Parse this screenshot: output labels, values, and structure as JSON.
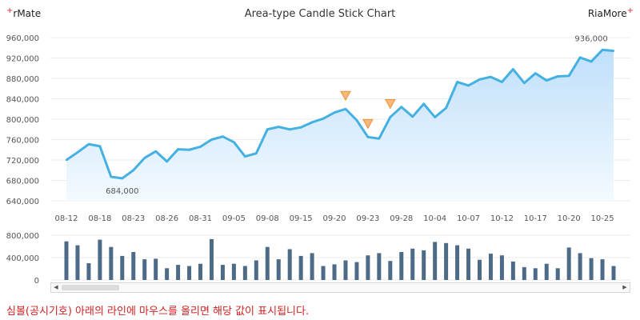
{
  "header": {
    "left_brand": "rMate",
    "right_brand": "RiaMore",
    "brand_mark": "+"
  },
  "footnote": "심볼(공시기호) 아래의 라인에 마우스를 올리면 해당 값이 표시됩니다.",
  "colors": {
    "line": "#45b0e2",
    "area_top": "#bfe0fb",
    "area_bottom": "#f4faff",
    "bar": "#4d6a87",
    "marker_fill": "#f7b87a",
    "marker_stroke": "#e8943c",
    "footnote": "#d62020"
  },
  "chart_data": [
    {
      "type": "area",
      "title": "Area-type Candle Stick Chart",
      "ylim": [
        640000,
        960000
      ],
      "yticks": [
        "640,000",
        "680,000",
        "720,000",
        "760,000",
        "800,000",
        "840,000",
        "880,000",
        "920,000",
        "960,000"
      ],
      "x_tick_labels": [
        "08-12",
        "08-18",
        "08-23",
        "08-26",
        "08-31",
        "09-05",
        "09-08",
        "09-15",
        "09-20",
        "09-23",
        "09-28",
        "10-04",
        "10-07",
        "10-12",
        "10-17",
        "10-20",
        "10-25"
      ],
      "x_tick_positions": [
        0,
        3,
        6,
        9,
        12,
        15,
        18,
        21,
        24,
        27,
        30,
        33,
        36,
        39,
        42,
        45,
        48
      ],
      "values": [
        720000,
        735000,
        751000,
        747000,
        687000,
        684000,
        700000,
        724000,
        737000,
        717000,
        741000,
        740000,
        746000,
        760000,
        766000,
        755000,
        727000,
        733000,
        780000,
        785000,
        780000,
        784000,
        794000,
        801000,
        813000,
        820000,
        798000,
        765000,
        762000,
        804000,
        824000,
        805000,
        830000,
        804000,
        822000,
        873000,
        866000,
        878000,
        883000,
        873000,
        898000,
        871000,
        890000,
        876000,
        884000,
        885000,
        921000,
        913000,
        936000,
        934000
      ],
      "annotations": [
        {
          "label": "684,000",
          "index": 5
        },
        {
          "label": "936,000",
          "index": 48
        }
      ],
      "markers": [
        25,
        27,
        29
      ],
      "grid": true
    },
    {
      "type": "bar",
      "ylim": [
        0,
        800000
      ],
      "yticks": [
        "0",
        "400,000",
        "800,000"
      ],
      "values": [
        690000,
        620000,
        300000,
        720000,
        590000,
        430000,
        500000,
        370000,
        380000,
        210000,
        270000,
        250000,
        290000,
        730000,
        270000,
        290000,
        250000,
        350000,
        590000,
        370000,
        550000,
        430000,
        480000,
        250000,
        280000,
        350000,
        320000,
        440000,
        480000,
        340000,
        500000,
        560000,
        530000,
        680000,
        660000,
        620000,
        560000,
        360000,
        470000,
        440000,
        330000,
        230000,
        210000,
        290000,
        210000,
        580000,
        480000,
        390000,
        370000,
        250000
      ],
      "grid": true
    }
  ]
}
